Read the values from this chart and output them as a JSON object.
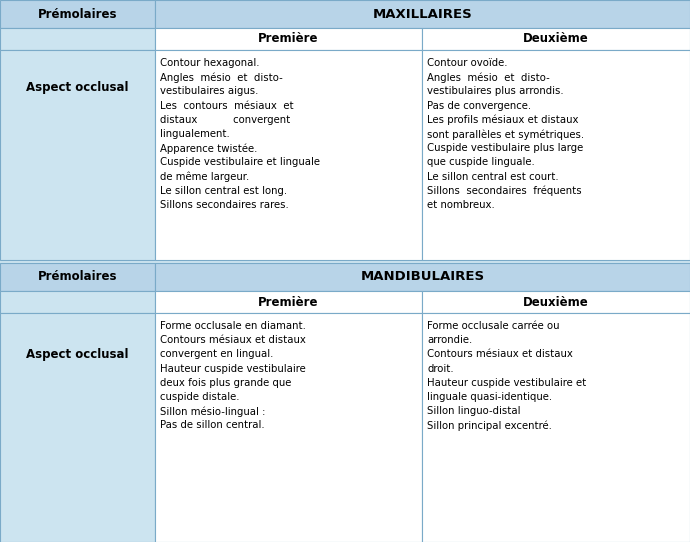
{
  "bg_color": "#cce4f0",
  "header_bg": "#b8d4e8",
  "white_bg": "#ffffff",
  "border_color": "#7aaac8",
  "sections": [
    {
      "label": "Prémolaires",
      "header": "MAXILLAIRES",
      "subheader": [
        "Première",
        "Deuxième"
      ],
      "row_label": "Aspect occlusal",
      "col1_lines": [
        "Contour hexagonal.",
        "Angles  mésio  et  disto-",
        "vestibulaires aigus.",
        "Les  contours  mésiaux  et",
        "distaux           convergent",
        "lingualement.",
        "Apparence twistée.",
        "Cuspide vestibulaire et linguale",
        "de même largeur.",
        "Le sillon central est long.",
        "Sillons secondaires rares."
      ],
      "col2_lines": [
        "Contour ovoïde.",
        "Angles  mésio  et  disto-",
        "vestibulaires plus arrondis.",
        "Pas de convergence.",
        "Les profils mésiaux et distaux",
        "sont parallèles et symétriques.",
        "Cuspide vestibulaire plus large",
        "que cuspide linguale.",
        "Le sillon central est court.",
        "Sillons  secondaires  fréquents",
        "et nombreux."
      ]
    },
    {
      "label": "Prémolaires",
      "header": "MANDIBULAIRES",
      "subheader": [
        "Première",
        "Deuxième"
      ],
      "row_label": "Aspect occlusal",
      "col1_lines": [
        "Forme occlusale en diamant.",
        "Contours mésiaux et distaux",
        "convergent en lingual.",
        "Hauteur cuspide vestibulaire",
        "deux fois plus grande que",
        "cuspide distale.",
        "Sillon mésio-lingual :",
        "Pas de sillon central."
      ],
      "col2_lines": [
        "Forme occlusale carrée ou",
        "arrondie.",
        "Contours mésiaux et distaux",
        "droit.",
        "Hauteur cuspide vestibulaire et",
        "linguale quasi-identique.",
        "Sillon linguo-distal",
        "Sillon principal excentré."
      ]
    }
  ]
}
